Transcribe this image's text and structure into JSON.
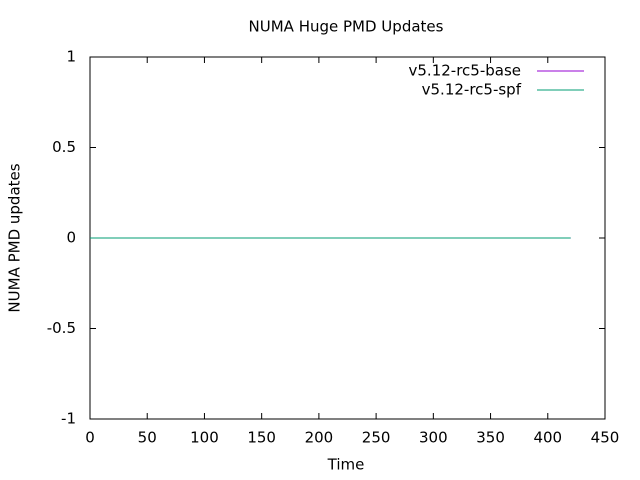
{
  "chart_data": {
    "type": "line",
    "title": "NUMA Huge PMD Updates",
    "x_label": "Time",
    "y_label": "NUMA PMD updates",
    "x": [
      0,
      420
    ],
    "series": [
      {
        "name": "v5.12-rc5-base",
        "color": "#9400d3",
        "values": [
          0,
          0
        ]
      },
      {
        "name": "v5.12-rc5-spf",
        "color": "#009e73",
        "values": [
          0,
          0
        ]
      }
    ],
    "xlim": [
      0,
      450
    ],
    "xticks": [
      0,
      50,
      100,
      150,
      200,
      250,
      300,
      350,
      400,
      450
    ],
    "ylim": [
      -1,
      1
    ],
    "yticks": [
      -1,
      -0.5,
      0,
      0.5,
      1
    ],
    "legend": "top-right"
  }
}
